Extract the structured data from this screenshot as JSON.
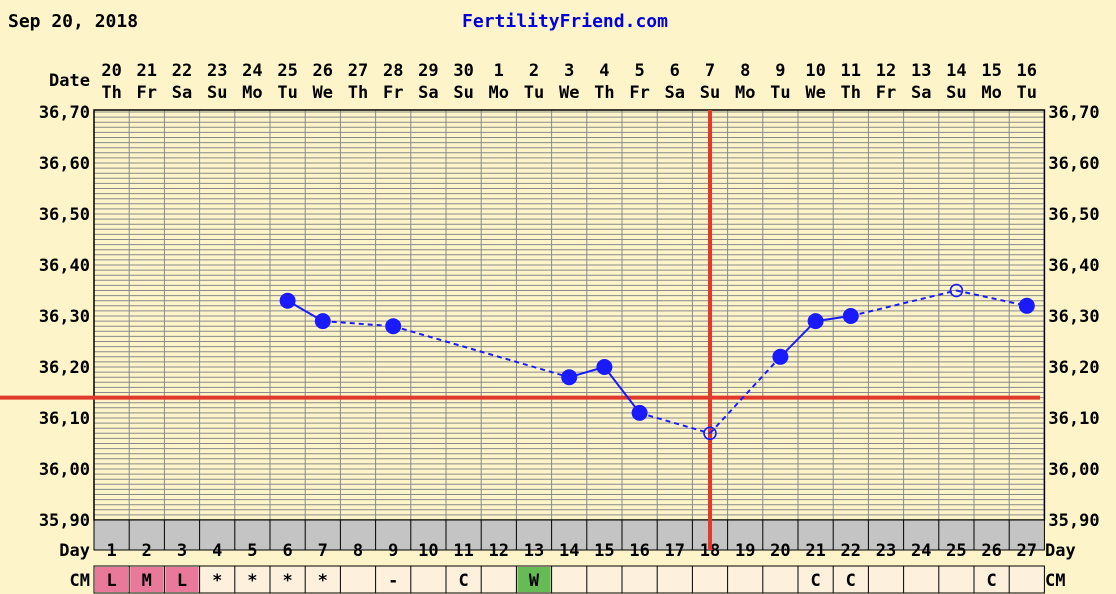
{
  "header": {
    "date": "Sep 20, 2018",
    "site": "FertilityFriend.com"
  },
  "labels": {
    "date": "Date",
    "day": "Day",
    "cm": "CM"
  },
  "colors": {
    "background": "#fdf5c9",
    "grid": "#8a8a8a",
    "series": "#1a1aff",
    "coverline": "#e03a2c",
    "ovulation_line": "#e03a2c",
    "day_row_bg": "#c4c4c4",
    "cm_bg": "#fdf0dc",
    "cm_L": "#e8799a",
    "cm_M": "#e8799a",
    "cm_W": "#66bb55",
    "site": "#0000dd"
  },
  "chart_data": {
    "type": "line",
    "title": "FertilityFriend.com",
    "ylabel": "",
    "ylim": [
      35.9,
      36.7
    ],
    "yticks": [
      "35,90",
      "36,00",
      "36,10",
      "36,20",
      "36,30",
      "36,40",
      "36,50",
      "36,60",
      "36,70"
    ],
    "grid": true,
    "dates": [
      "20",
      "21",
      "22",
      "23",
      "24",
      "25",
      "26",
      "27",
      "28",
      "29",
      "30",
      "1",
      "2",
      "3",
      "4",
      "5",
      "6",
      "7",
      "8",
      "9",
      "10",
      "11",
      "12",
      "13",
      "14",
      "15",
      "16"
    ],
    "weekdays": [
      "Th",
      "Fr",
      "Sa",
      "Su",
      "Mo",
      "Tu",
      "We",
      "Th",
      "Fr",
      "Sa",
      "Su",
      "Mo",
      "Tu",
      "We",
      "Th",
      "Fr",
      "Sa",
      "Su",
      "Mo",
      "Tu",
      "We",
      "Th",
      "Fr",
      "Sa",
      "Su",
      "Mo",
      "Tu"
    ],
    "cycle_days": [
      "1",
      "2",
      "3",
      "4",
      "5",
      "6",
      "7",
      "8",
      "9",
      "10",
      "11",
      "12",
      "13",
      "14",
      "15",
      "16",
      "17",
      "18",
      "19",
      "20",
      "21",
      "22",
      "23",
      "24",
      "25",
      "26",
      "27"
    ],
    "cm": [
      "L",
      "M",
      "L",
      "*",
      "*",
      "*",
      "*",
      "",
      "-",
      "",
      "C",
      "",
      "W",
      "",
      "",
      "",
      "",
      "",
      "",
      "",
      "C",
      "C",
      "",
      "",
      "",
      "C",
      ""
    ],
    "coverline": 36.14,
    "ovulation_day": 18,
    "series": [
      {
        "points": [
          {
            "day": 6,
            "temp": 36.33,
            "marker": "filled"
          },
          {
            "day": 7,
            "temp": 36.29,
            "marker": "filled"
          },
          {
            "day": 9,
            "temp": 36.28,
            "marker": "filled"
          },
          {
            "day": 14,
            "temp": 36.18,
            "marker": "filled"
          },
          {
            "day": 15,
            "temp": 36.2,
            "marker": "filled"
          },
          {
            "day": 16,
            "temp": 36.11,
            "marker": "filled"
          },
          {
            "day": 18,
            "temp": 36.07,
            "marker": "open"
          },
          {
            "day": 20,
            "temp": 36.22,
            "marker": "filled"
          },
          {
            "day": 21,
            "temp": 36.29,
            "marker": "filled"
          },
          {
            "day": 22,
            "temp": 36.3,
            "marker": "filled"
          },
          {
            "day": 25,
            "temp": 36.35,
            "marker": "open"
          },
          {
            "day": 27,
            "temp": 36.32,
            "marker": "filled"
          }
        ]
      }
    ]
  }
}
